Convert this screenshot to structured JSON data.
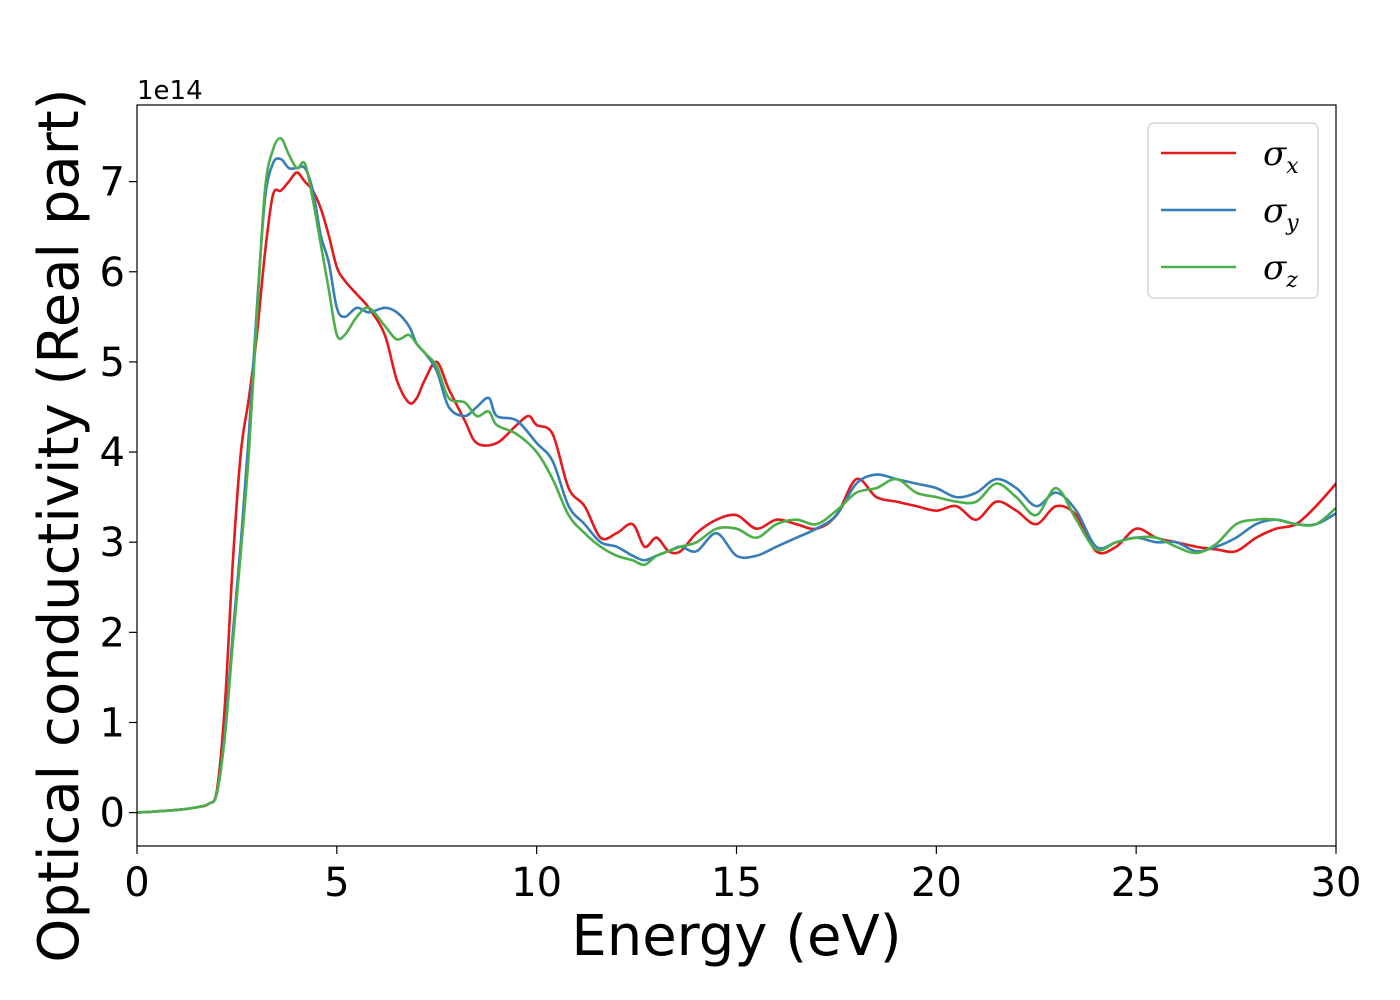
{
  "chart_data": {
    "type": "line",
    "title": "",
    "xlabel": "Energy (eV)",
    "ylabel": "Optical conductivity (Real part)",
    "y_offset_label": "1e14",
    "xlim": [
      0,
      30
    ],
    "ylim": [
      -0.37,
      7.85
    ],
    "x_ticks": [
      0,
      5,
      10,
      15,
      20,
      25,
      30
    ],
    "x_tick_labels": [
      "0",
      "5",
      "10",
      "15",
      "20",
      "25",
      "30"
    ],
    "y_ticks": [
      0,
      1,
      2,
      3,
      4,
      5,
      6,
      7
    ],
    "y_tick_labels": [
      "0",
      "1",
      "2",
      "3",
      "4",
      "5",
      "6",
      "7"
    ],
    "grid": false,
    "legend_position": "top-right",
    "series": [
      {
        "name": "σx",
        "symbol": "σ",
        "subscript": "x",
        "color": "#e41a1c",
        "x": [
          0,
          1,
          1.5,
          1.8,
          2.0,
          2.2,
          2.4,
          2.6,
          2.8,
          3.0,
          3.2,
          3.4,
          3.6,
          3.8,
          4.0,
          4.2,
          4.4,
          4.6,
          4.8,
          5.0,
          5.2,
          5.5,
          5.8,
          6.2,
          6.5,
          6.8,
          7.0,
          7.2,
          7.5,
          7.8,
          8.2,
          8.5,
          9.0,
          9.5,
          9.8,
          10.0,
          10.4,
          10.8,
          11.2,
          11.6,
          12.0,
          12.4,
          12.7,
          13.0,
          13.3,
          13.6,
          14.0,
          14.5,
          15.0,
          15.5,
          16.0,
          16.5,
          17.0,
          17.5,
          18.0,
          18.5,
          19.0,
          19.5,
          20.0,
          20.5,
          21.0,
          21.5,
          22.0,
          22.5,
          23.0,
          23.5,
          24.0,
          24.5,
          25.0,
          25.5,
          26.0,
          26.5,
          27.0,
          27.5,
          28.0,
          28.5,
          29.0,
          29.5,
          30.0
        ],
        "values": [
          0.0,
          0.03,
          0.06,
          0.1,
          0.25,
          1.2,
          2.8,
          4.0,
          4.6,
          5.3,
          6.2,
          6.85,
          6.9,
          7.0,
          7.1,
          7.0,
          6.9,
          6.7,
          6.4,
          6.05,
          5.9,
          5.75,
          5.6,
          5.3,
          4.8,
          4.55,
          4.6,
          4.8,
          5.0,
          4.7,
          4.35,
          4.1,
          4.1,
          4.3,
          4.4,
          4.3,
          4.2,
          3.6,
          3.4,
          3.05,
          3.1,
          3.2,
          2.95,
          3.05,
          2.9,
          2.9,
          3.1,
          3.25,
          3.3,
          3.15,
          3.25,
          3.2,
          3.15,
          3.3,
          3.7,
          3.5,
          3.45,
          3.4,
          3.35,
          3.4,
          3.25,
          3.45,
          3.35,
          3.2,
          3.4,
          3.3,
          2.9,
          2.95,
          3.15,
          3.05,
          3.0,
          2.95,
          2.92,
          2.9,
          3.05,
          3.15,
          3.2,
          3.4,
          3.65
        ]
      },
      {
        "name": "σy",
        "symbol": "σ",
        "subscript": "y",
        "color": "#377eb8",
        "x": [
          0,
          1,
          1.5,
          1.8,
          2.0,
          2.2,
          2.4,
          2.6,
          2.8,
          3.0,
          3.2,
          3.4,
          3.6,
          3.8,
          4.0,
          4.2,
          4.4,
          4.6,
          4.8,
          5.0,
          5.2,
          5.5,
          5.8,
          6.2,
          6.5,
          6.8,
          7.0,
          7.2,
          7.5,
          7.8,
          8.2,
          8.5,
          8.8,
          9.0,
          9.5,
          10.0,
          10.4,
          10.8,
          11.2,
          11.6,
          12.0,
          12.4,
          12.7,
          13.0,
          13.3,
          13.6,
          14.0,
          14.5,
          15.0,
          15.5,
          16.0,
          16.5,
          17.0,
          17.5,
          18.0,
          18.5,
          19.0,
          19.5,
          20.0,
          20.5,
          21.0,
          21.5,
          22.0,
          22.5,
          23.0,
          23.5,
          24.0,
          24.5,
          25.0,
          25.5,
          26.0,
          26.5,
          27.0,
          27.5,
          28.0,
          28.5,
          29.0,
          29.5,
          30.0
        ],
        "values": [
          0.0,
          0.03,
          0.06,
          0.1,
          0.22,
          0.9,
          2.0,
          3.0,
          4.2,
          5.6,
          6.8,
          7.2,
          7.25,
          7.15,
          7.15,
          7.15,
          6.9,
          6.4,
          6.1,
          5.6,
          5.5,
          5.6,
          5.55,
          5.6,
          5.55,
          5.4,
          5.2,
          5.1,
          4.9,
          4.5,
          4.4,
          4.5,
          4.6,
          4.4,
          4.35,
          4.1,
          3.9,
          3.4,
          3.2,
          3.0,
          2.95,
          2.85,
          2.8,
          2.85,
          2.9,
          2.95,
          2.9,
          3.1,
          2.85,
          2.85,
          2.95,
          3.05,
          3.15,
          3.3,
          3.65,
          3.75,
          3.7,
          3.65,
          3.6,
          3.5,
          3.55,
          3.7,
          3.6,
          3.4,
          3.55,
          3.35,
          2.95,
          3.0,
          3.05,
          3.0,
          3.0,
          2.9,
          2.95,
          3.05,
          3.2,
          3.25,
          3.2,
          3.2,
          3.32
        ]
      },
      {
        "name": "σz",
        "symbol": "σ",
        "subscript": "z",
        "color": "#4daf4a",
        "x": [
          0,
          1,
          1.5,
          1.8,
          2.0,
          2.2,
          2.4,
          2.6,
          2.8,
          3.0,
          3.2,
          3.4,
          3.6,
          3.8,
          4.0,
          4.2,
          4.4,
          4.6,
          4.8,
          5.0,
          5.2,
          5.5,
          5.8,
          6.2,
          6.5,
          6.8,
          7.0,
          7.2,
          7.5,
          7.8,
          8.2,
          8.5,
          8.8,
          9.0,
          9.5,
          10.0,
          10.4,
          10.8,
          11.2,
          11.6,
          12.0,
          12.4,
          12.7,
          13.0,
          13.3,
          13.6,
          14.0,
          14.5,
          15.0,
          15.5,
          16.0,
          16.5,
          17.0,
          17.5,
          18.0,
          18.5,
          19.0,
          19.5,
          20.0,
          20.5,
          21.0,
          21.5,
          22.0,
          22.5,
          23.0,
          23.5,
          24.0,
          24.5,
          25.0,
          25.5,
          26.0,
          26.5,
          27.0,
          27.5,
          28.0,
          28.5,
          29.0,
          29.5,
          30.0
        ],
        "values": [
          0.0,
          0.03,
          0.06,
          0.1,
          0.22,
          0.85,
          1.9,
          2.9,
          4.0,
          5.5,
          6.9,
          7.35,
          7.48,
          7.3,
          7.15,
          7.2,
          6.8,
          6.3,
          5.8,
          5.3,
          5.3,
          5.5,
          5.6,
          5.4,
          5.25,
          5.3,
          5.2,
          5.1,
          4.95,
          4.6,
          4.55,
          4.4,
          4.45,
          4.3,
          4.2,
          4.0,
          3.7,
          3.3,
          3.1,
          2.95,
          2.85,
          2.8,
          2.75,
          2.85,
          2.9,
          2.95,
          3.0,
          3.15,
          3.15,
          3.05,
          3.2,
          3.25,
          3.2,
          3.35,
          3.55,
          3.6,
          3.7,
          3.55,
          3.5,
          3.45,
          3.45,
          3.65,
          3.5,
          3.3,
          3.6,
          3.25,
          2.92,
          3.0,
          3.05,
          3.05,
          2.95,
          2.88,
          2.98,
          3.2,
          3.25,
          3.25,
          3.2,
          3.2,
          3.38
        ]
      }
    ]
  }
}
